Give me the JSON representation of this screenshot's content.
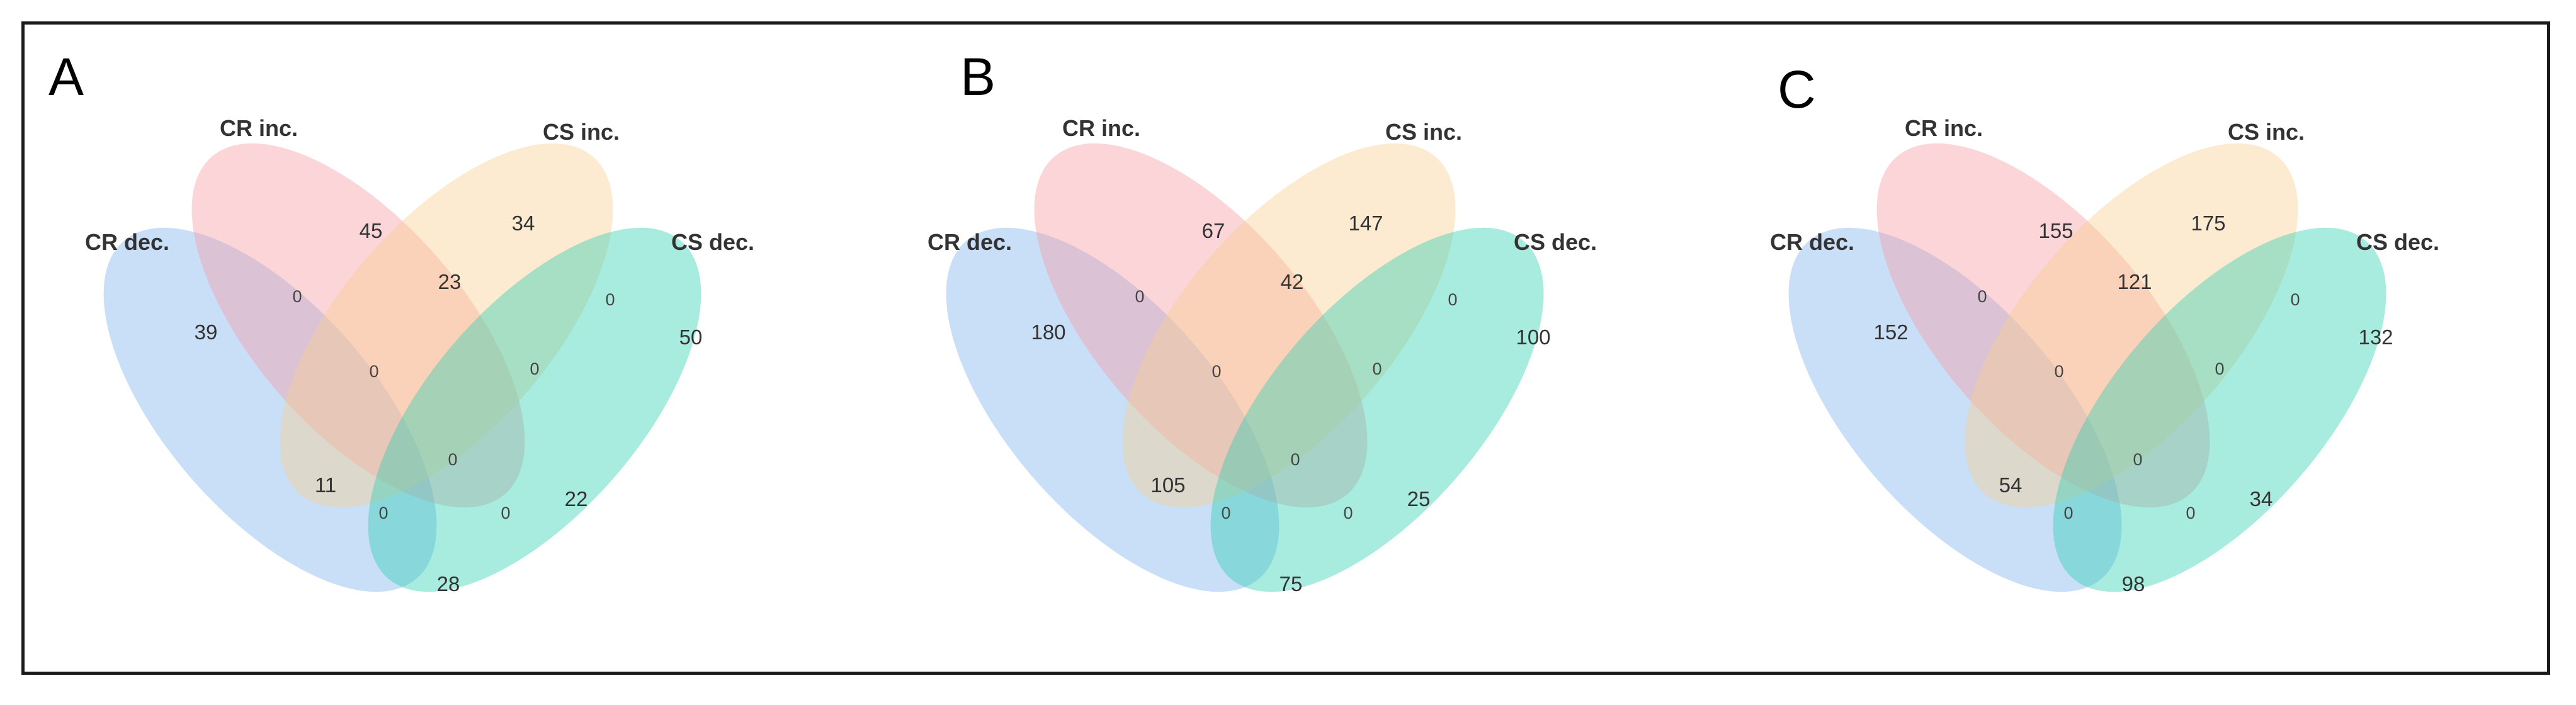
{
  "colors": {
    "cr_dec": "#7fb2ef",
    "cr_inc": "#f59aa1",
    "cs_inc": "#f9cf8e",
    "cs_dec": "#2fd0b3"
  },
  "set_labels": {
    "cr_dec": "CR dec.",
    "cr_inc": "CR inc.",
    "cs_inc": "CS inc.",
    "cs_dec": "CS dec."
  },
  "panels": [
    {
      "letter": "A",
      "counts": {
        "cr_dec_only": "39",
        "cr_inc_only": "45",
        "cs_inc_only": "34",
        "cs_dec_only": "50",
        "crdec_crinc": "0",
        "crinc_csinc": "23",
        "csinc_csdec": "0",
        "crdec_crinc_csinc": "0",
        "crinc_csinc_csdec": "0",
        "all_four": "0",
        "crdec_csinc": "11",
        "crinc_csdec": "22",
        "crdec_csinc_csdec": "0",
        "crdec_crinc_csdec": "0",
        "crdec_csdec": "28"
      }
    },
    {
      "letter": "B",
      "counts": {
        "cr_dec_only": "180",
        "cr_inc_only": "67",
        "cs_inc_only": "147",
        "cs_dec_only": "100",
        "crdec_crinc": "0",
        "crinc_csinc": "42",
        "csinc_csdec": "0",
        "crdec_crinc_csinc": "0",
        "crinc_csinc_csdec": "0",
        "all_four": "0",
        "crdec_csinc": "105",
        "crinc_csdec": "25",
        "crdec_csinc_csdec": "0",
        "crdec_crinc_csdec": "0",
        "crdec_csdec": "75"
      }
    },
    {
      "letter": "C",
      "counts": {
        "cr_dec_only": "152",
        "cr_inc_only": "155",
        "cs_inc_only": "175",
        "cs_dec_only": "132",
        "crdec_crinc": "0",
        "crinc_csinc": "121",
        "csinc_csdec": "0",
        "crdec_crinc_csinc": "0",
        "crinc_csinc_csdec": "0",
        "all_four": "0",
        "crdec_csinc": "54",
        "crinc_csdec": "34",
        "crdec_csinc_csdec": "0",
        "crdec_crinc_csdec": "0",
        "crdec_csdec": "98"
      }
    }
  ]
}
